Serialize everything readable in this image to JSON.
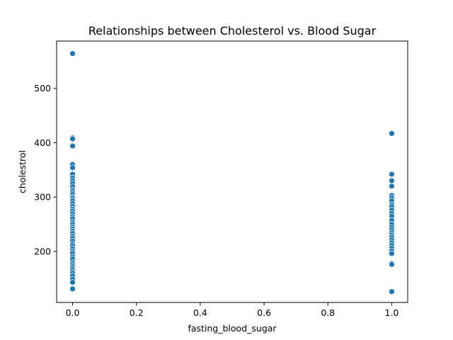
{
  "chart_data": {
    "type": "scatter",
    "title": "Relationships between Cholesterol vs. Blood Sugar",
    "xlabel": "fasting_blood_sugar",
    "ylabel": "cholestrol",
    "xlim": [
      -0.05,
      1.05
    ],
    "ylim": [
      106,
      587
    ],
    "xticks": [
      0.0,
      0.2,
      0.4,
      0.6,
      0.8,
      1.0
    ],
    "xtick_labels": [
      "0.0",
      "0.2",
      "0.4",
      "0.6",
      "0.8",
      "1.0"
    ],
    "yticks": [
      200,
      300,
      400,
      500
    ],
    "ytick_labels": [
      "200",
      "300",
      "400",
      "500"
    ],
    "grid": false,
    "color": "#1f77b4",
    "series": [
      {
        "points": [
          [
            0,
            564
          ],
          [
            0,
            409
          ],
          [
            0,
            407
          ],
          [
            0,
            394
          ],
          [
            0,
            360
          ],
          [
            0,
            354
          ],
          [
            0,
            342
          ],
          [
            0,
            335
          ],
          [
            0,
            330
          ],
          [
            0,
            325
          ],
          [
            0,
            319
          ],
          [
            0,
            313
          ],
          [
            0,
            309
          ],
          [
            0,
            305
          ],
          [
            0,
            300
          ],
          [
            0,
            297
          ],
          [
            0,
            293
          ],
          [
            0,
            288
          ],
          [
            0,
            283
          ],
          [
            0,
            278
          ],
          [
            0,
            274
          ],
          [
            0,
            269
          ],
          [
            0,
            264
          ],
          [
            0,
            260
          ],
          [
            0,
            254
          ],
          [
            0,
            250
          ],
          [
            0,
            245
          ],
          [
            0,
            241
          ],
          [
            0,
            237
          ],
          [
            0,
            233
          ],
          [
            0,
            228
          ],
          [
            0,
            224
          ],
          [
            0,
            219
          ],
          [
            0,
            214
          ],
          [
            0,
            210
          ],
          [
            0,
            205
          ],
          [
            0,
            200
          ],
          [
            0,
            196
          ],
          [
            0,
            190
          ],
          [
            0,
            186
          ],
          [
            0,
            180
          ],
          [
            0,
            176
          ],
          [
            0,
            172
          ],
          [
            0,
            168
          ],
          [
            0,
            164
          ],
          [
            0,
            160
          ],
          [
            0,
            155
          ],
          [
            0,
            149
          ],
          [
            0,
            143
          ],
          [
            0,
            131
          ],
          [
            1,
            417
          ],
          [
            1,
            342
          ],
          [
            1,
            330
          ],
          [
            1,
            320
          ],
          [
            1,
            303
          ],
          [
            1,
            298
          ],
          [
            1,
            293
          ],
          [
            1,
            286
          ],
          [
            1,
            282
          ],
          [
            1,
            276
          ],
          [
            1,
            270
          ],
          [
            1,
            265
          ],
          [
            1,
            257
          ],
          [
            1,
            250
          ],
          [
            1,
            244
          ],
          [
            1,
            239
          ],
          [
            1,
            234
          ],
          [
            1,
            230
          ],
          [
            1,
            226
          ],
          [
            1,
            221
          ],
          [
            1,
            216
          ],
          [
            1,
            211
          ],
          [
            1,
            206
          ],
          [
            1,
            201
          ],
          [
            1,
            196
          ],
          [
            1,
            178
          ],
          [
            1,
            176
          ],
          [
            1,
            126
          ]
        ]
      }
    ]
  }
}
